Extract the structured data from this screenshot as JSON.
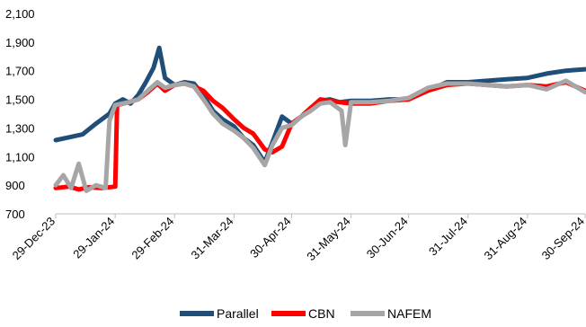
{
  "chart_data": {
    "type": "line",
    "title": "",
    "xlabel": "",
    "ylabel": "",
    "ylim": [
      700,
      2100
    ],
    "y_ticks": [
      700,
      900,
      1100,
      1300,
      1500,
      1700,
      1900,
      2100
    ],
    "y_tick_labels": [
      "700",
      "900",
      "1,100",
      "1,300",
      "1,500",
      "1,700",
      "1,900",
      "2,100"
    ],
    "x_ticks": [
      "2023-12-29",
      "2024-01-29",
      "2024-02-29",
      "2024-03-31",
      "2024-04-30",
      "2024-05-31",
      "2024-06-30",
      "2024-07-31",
      "2024-08-31",
      "2024-09-30"
    ],
    "x_tick_labels": [
      "29-Dec-23",
      "29-Jan-24",
      "29-Feb-24",
      "31-Mar-24",
      "30-Apr-24",
      "31-May-24",
      "30-Jun-24",
      "31-Jul-24",
      "31-Aug-24",
      "30-Sep-24"
    ],
    "grid": false,
    "legend_position": "bottom",
    "series": [
      {
        "name": "Parallel",
        "color": "#1F4E79",
        "points": [
          [
            "2023-12-29",
            1215
          ],
          [
            "2024-01-05",
            1235
          ],
          [
            "2024-01-12",
            1255
          ],
          [
            "2024-01-19",
            1330
          ],
          [
            "2024-01-26",
            1400
          ],
          [
            "2024-01-29",
            1470
          ],
          [
            "2024-02-02",
            1500
          ],
          [
            "2024-02-06",
            1470
          ],
          [
            "2024-02-10",
            1530
          ],
          [
            "2024-02-14",
            1620
          ],
          [
            "2024-02-18",
            1720
          ],
          [
            "2024-02-21",
            1860
          ],
          [
            "2024-02-24",
            1650
          ],
          [
            "2024-02-29",
            1600
          ],
          [
            "2024-03-05",
            1620
          ],
          [
            "2024-03-10",
            1610
          ],
          [
            "2024-03-15",
            1530
          ],
          [
            "2024-03-20",
            1420
          ],
          [
            "2024-03-25",
            1360
          ],
          [
            "2024-03-31",
            1310
          ],
          [
            "2024-04-05",
            1230
          ],
          [
            "2024-04-10",
            1180
          ],
          [
            "2024-04-16",
            1060
          ],
          [
            "2024-04-20",
            1200
          ],
          [
            "2024-04-25",
            1380
          ],
          [
            "2024-04-30",
            1330
          ],
          [
            "2024-05-05",
            1380
          ],
          [
            "2024-05-10",
            1440
          ],
          [
            "2024-05-15",
            1490
          ],
          [
            "2024-05-20",
            1500
          ],
          [
            "2024-05-25",
            1480
          ],
          [
            "2024-05-31",
            1490
          ],
          [
            "2024-06-10",
            1490
          ],
          [
            "2024-06-20",
            1500
          ],
          [
            "2024-06-30",
            1500
          ],
          [
            "2024-07-10",
            1560
          ],
          [
            "2024-07-20",
            1620
          ],
          [
            "2024-07-31",
            1620
          ],
          [
            "2024-08-10",
            1630
          ],
          [
            "2024-08-20",
            1640
          ],
          [
            "2024-08-31",
            1650
          ],
          [
            "2024-09-10",
            1680
          ],
          [
            "2024-09-20",
            1700
          ],
          [
            "2024-09-30",
            1710
          ]
        ]
      },
      {
        "name": "CBN",
        "color": "#FF0000",
        "points": [
          [
            "2023-12-29",
            880
          ],
          [
            "2024-01-05",
            890
          ],
          [
            "2024-01-10",
            870
          ],
          [
            "2024-01-15",
            885
          ],
          [
            "2024-01-22",
            880
          ],
          [
            "2024-01-29",
            890
          ],
          [
            "2024-01-30",
            1460
          ],
          [
            "2024-02-05",
            1480
          ],
          [
            "2024-02-10",
            1500
          ],
          [
            "2024-02-15",
            1550
          ],
          [
            "2024-02-20",
            1610
          ],
          [
            "2024-02-24",
            1560
          ],
          [
            "2024-02-29",
            1600
          ],
          [
            "2024-03-05",
            1610
          ],
          [
            "2024-03-10",
            1590
          ],
          [
            "2024-03-15",
            1560
          ],
          [
            "2024-03-20",
            1490
          ],
          [
            "2024-03-25",
            1440
          ],
          [
            "2024-03-31",
            1360
          ],
          [
            "2024-04-05",
            1300
          ],
          [
            "2024-04-10",
            1260
          ],
          [
            "2024-04-16",
            1150
          ],
          [
            "2024-04-20",
            1130
          ],
          [
            "2024-04-25",
            1170
          ],
          [
            "2024-04-30",
            1330
          ],
          [
            "2024-05-05",
            1380
          ],
          [
            "2024-05-10",
            1440
          ],
          [
            "2024-05-15",
            1500
          ],
          [
            "2024-05-20",
            1490
          ],
          [
            "2024-05-25",
            1480
          ],
          [
            "2024-05-31",
            1470
          ],
          [
            "2024-06-10",
            1470
          ],
          [
            "2024-06-20",
            1490
          ],
          [
            "2024-06-30",
            1500
          ],
          [
            "2024-07-10",
            1560
          ],
          [
            "2024-07-20",
            1600
          ],
          [
            "2024-07-31",
            1610
          ],
          [
            "2024-08-10",
            1600
          ],
          [
            "2024-08-20",
            1590
          ],
          [
            "2024-08-31",
            1600
          ],
          [
            "2024-09-10",
            1590
          ],
          [
            "2024-09-20",
            1620
          ],
          [
            "2024-09-30",
            1560
          ]
        ]
      },
      {
        "name": "NAFEM",
        "color": "#A6A6A6",
        "points": [
          [
            "2023-12-29",
            900
          ],
          [
            "2024-01-02",
            970
          ],
          [
            "2024-01-06",
            880
          ],
          [
            "2024-01-10",
            1050
          ],
          [
            "2024-01-14",
            860
          ],
          [
            "2024-01-19",
            900
          ],
          [
            "2024-01-24",
            880
          ],
          [
            "2024-01-26",
            1350
          ],
          [
            "2024-01-29",
            1460
          ],
          [
            "2024-02-05",
            1480
          ],
          [
            "2024-02-10",
            1500
          ],
          [
            "2024-02-15",
            1560
          ],
          [
            "2024-02-20",
            1620
          ],
          [
            "2024-02-24",
            1580
          ],
          [
            "2024-02-29",
            1600
          ],
          [
            "2024-03-05",
            1610
          ],
          [
            "2024-03-10",
            1590
          ],
          [
            "2024-03-15",
            1500
          ],
          [
            "2024-03-20",
            1400
          ],
          [
            "2024-03-25",
            1330
          ],
          [
            "2024-03-31",
            1280
          ],
          [
            "2024-04-05",
            1230
          ],
          [
            "2024-04-10",
            1160
          ],
          [
            "2024-04-16",
            1040
          ],
          [
            "2024-04-20",
            1180
          ],
          [
            "2024-04-25",
            1300
          ],
          [
            "2024-04-30",
            1320
          ],
          [
            "2024-05-05",
            1380
          ],
          [
            "2024-05-10",
            1420
          ],
          [
            "2024-05-15",
            1470
          ],
          [
            "2024-05-20",
            1480
          ],
          [
            "2024-05-26",
            1420
          ],
          [
            "2024-05-28",
            1180
          ],
          [
            "2024-05-31",
            1480
          ],
          [
            "2024-06-10",
            1480
          ],
          [
            "2024-06-20",
            1490
          ],
          [
            "2024-06-30",
            1510
          ],
          [
            "2024-07-10",
            1580
          ],
          [
            "2024-07-20",
            1610
          ],
          [
            "2024-07-31",
            1610
          ],
          [
            "2024-08-10",
            1600
          ],
          [
            "2024-08-20",
            1590
          ],
          [
            "2024-08-31",
            1600
          ],
          [
            "2024-09-10",
            1570
          ],
          [
            "2024-09-20",
            1630
          ],
          [
            "2024-09-30",
            1550
          ]
        ]
      }
    ]
  }
}
